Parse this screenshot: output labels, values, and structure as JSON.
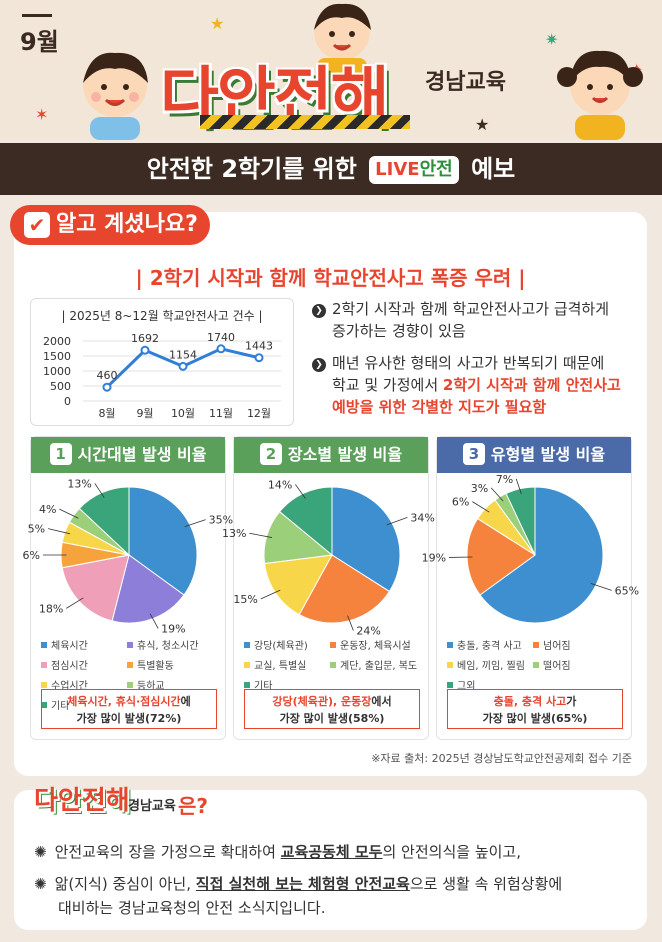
{
  "header": {
    "month": "9월",
    "brand": "다안전해",
    "brand_sub": "경남교육"
  },
  "band": {
    "title_pre": "안전한 2학기를 위한",
    "live_a": "LIVE",
    "live_b": "안전",
    "title_post": "예보"
  },
  "section1": {
    "badge": "알고 계셨나요?",
    "headline": "| 2학기 시작과 함께 학교안전사고 폭증 우려 |"
  },
  "bullets": [
    {
      "line1": "2학기 시작과 함께 학교안전사고가 급격하게",
      "line2": "증가하는 경향이 있음"
    },
    {
      "line1": "매년 유사한 형태의 사고가 반복되기 때문에",
      "line2a": "학교 및 가정에서 ",
      "line2b": "2학기 시작과 함께 안전사고",
      "line3": "예방을 위한 각별한 지도가 필요함"
    }
  ],
  "chart_data": [
    {
      "type": "line",
      "title": "| 2025년 8~12월 학교안전사고 건수 |",
      "categories": [
        "8월",
        "9월",
        "10월",
        "11월",
        "12월"
      ],
      "values": [
        460,
        1692,
        1154,
        1740,
        1443
      ],
      "yticks": [
        "2000",
        "1500",
        "1000",
        "500",
        "0"
      ],
      "ylim": [
        0,
        2000
      ],
      "grid": true,
      "color": "#2f7ed8"
    },
    {
      "type": "pie",
      "title": "시간대별 발생 비율",
      "number": "1",
      "header_color": "#5aa05a",
      "labels": [
        "체육시간",
        "휴식, 청소시간",
        "점심시간",
        "특별활동",
        "수업시간",
        "등하교",
        "기타"
      ],
      "values": [
        35,
        19,
        18,
        6,
        5,
        4,
        13
      ],
      "colors": [
        "#3d8fd0",
        "#8d7fd9",
        "#ef9fb7",
        "#f6a33e",
        "#f7d64a",
        "#9ccf7a",
        "#3aa57a"
      ],
      "note_red": "체육시간, 휴식·점심시간",
      "note_tail": "에",
      "note_line2": "가장 많이 발생(72%)"
    },
    {
      "type": "pie",
      "title": "장소별 발생 비율",
      "number": "2",
      "header_color": "#5aa05a",
      "labels": [
        "강당(체육관)",
        "운동장, 체육시설",
        "교실, 특별실",
        "계단, 출입문, 복도",
        "기타"
      ],
      "values": [
        34,
        24,
        15,
        13,
        14
      ],
      "colors": [
        "#3d8fd0",
        "#f5833e",
        "#f7d64a",
        "#9ccf7a",
        "#3aa57a"
      ],
      "note_red": "강당(체육관), 운동장",
      "note_tail": "에서",
      "note_line2": "가장 많이 발생(58%)"
    },
    {
      "type": "pie",
      "title": "유형별 발생 비율",
      "number": "3",
      "header_color": "#4b6aa8",
      "labels": [
        "충돌, 충격 사고",
        "넘어짐",
        "베임, 끼임, 찔림",
        "떨어짐",
        "그외"
      ],
      "values": [
        65,
        19,
        6,
        3,
        7
      ],
      "colors": [
        "#3d8fd0",
        "#f5833e",
        "#f7d64a",
        "#9ccf7a",
        "#3aa57a"
      ],
      "note_red": "충돌, 충격 사고",
      "note_tail": "가",
      "note_line2": "가장 많이 발생(65%)"
    }
  ],
  "source": "※자료 출처: 2025년 경상남도학교안전공제회 접수 기준",
  "section2": {
    "brand": "다안전해",
    "brand_sub": "경남교육",
    "suffix": "은?",
    "p1_pre": "안전교육의 장을 가정으로 확대하여 ",
    "p1_ul": "교육공동체 모두",
    "p1_post": "의 안전의식을 높이고,",
    "p2_pre": "앎(지식) 중심이 아닌, ",
    "p2_ul": "직접 실천해 보는 체험형 안전교육",
    "p2_post": "으로 생활 속 위험상황에",
    "p2_line2": "대비하는 경남교육청의 안전 소식지입니다."
  }
}
